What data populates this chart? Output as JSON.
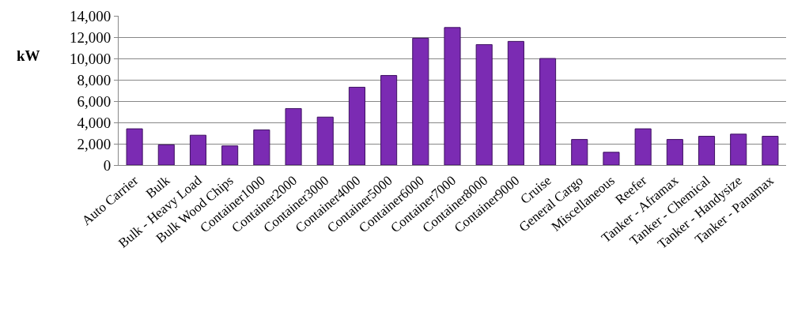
{
  "chart_data": {
    "type": "bar",
    "ylabel": "kW",
    "categories": [
      "Auto Carrier",
      "Bulk",
      "Bulk - Heavy Load",
      "Bulk Wood Chips",
      "Container1000",
      "Container2000",
      "Container3000",
      "Container4000",
      "Container5000",
      "Container6000",
      "Container7000",
      "Container8000",
      "Container9000",
      "Cruise",
      "General Cargo",
      "Miscellaneous",
      "Reefer",
      "Tanker - Aframax",
      "Tanker - Chemical",
      "Tanker - Handysize",
      "Tanker - Panamax"
    ],
    "values": [
      3400,
      1900,
      2800,
      1800,
      3300,
      5300,
      4500,
      7300,
      8400,
      11900,
      12900,
      11300,
      11600,
      10000,
      2400,
      1200,
      3400,
      2400,
      2700,
      2900,
      2700
    ],
    "color": "#7b2bb3",
    "ylim": [
      0,
      14000
    ],
    "yticks": [
      {
        "value": 0,
        "label": "0"
      },
      {
        "value": 2000,
        "label": "2,000"
      },
      {
        "value": 4000,
        "label": "4,000"
      },
      {
        "value": 6000,
        "label": "6,000"
      },
      {
        "value": 8000,
        "label": "8,000"
      },
      {
        "value": 10000,
        "label": "10,000"
      },
      {
        "value": 12000,
        "label": "12,000"
      },
      {
        "value": 14000,
        "label": "14,000"
      }
    ],
    "grid": "y"
  }
}
